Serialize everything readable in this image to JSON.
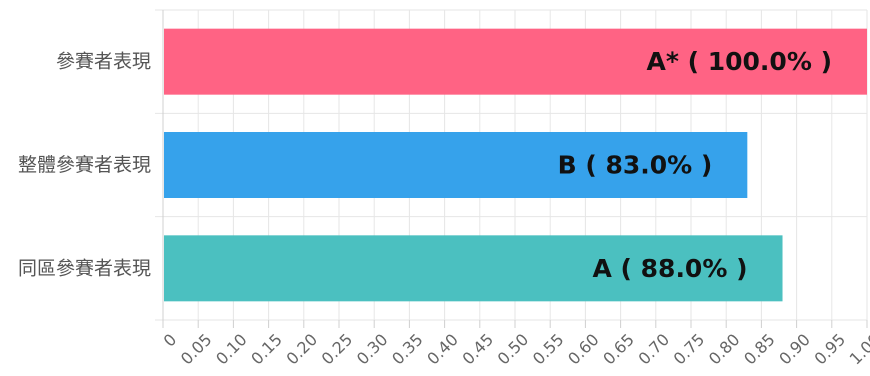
{
  "chart_data": {
    "type": "bar",
    "orientation": "horizontal",
    "categories": [
      "參賽者表現",
      "整體參賽者表現",
      "同區參賽者表現"
    ],
    "values": [
      1.0,
      0.83,
      0.88
    ],
    "bar_labels": [
      "A* ( 100.0% )",
      "B ( 83.0% )",
      "A ( 88.0% )"
    ],
    "colors": [
      "#ff6384",
      "#36a2eb",
      "#4bc0c0"
    ],
    "xlim": [
      0,
      1
    ],
    "x_ticks": [
      "0",
      "0.05",
      "0.10",
      "0.15",
      "0.20",
      "0.25",
      "0.30",
      "0.35",
      "0.40",
      "0.45",
      "0.50",
      "0.55",
      "0.60",
      "0.65",
      "0.70",
      "0.75",
      "0.80",
      "0.85",
      "0.90",
      "0.95",
      "1.00"
    ],
    "grid": true,
    "legend": "none",
    "title": "",
    "xlabel": "",
    "ylabel": ""
  }
}
